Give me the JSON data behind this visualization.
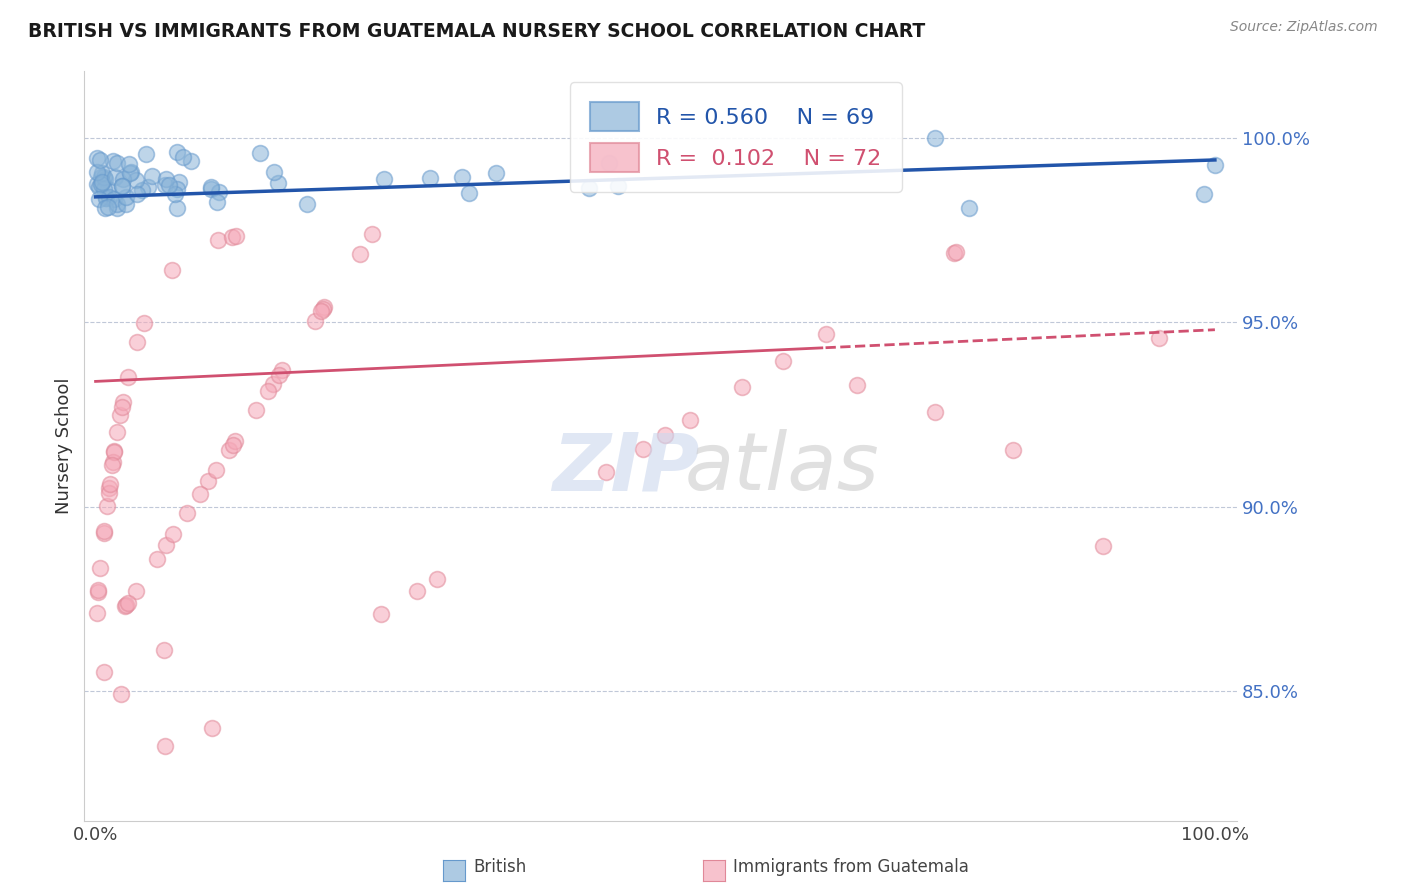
{
  "title": "BRITISH VS IMMIGRANTS FROM GUATEMALA NURSERY SCHOOL CORRELATION CHART",
  "source": "Source: ZipAtlas.com",
  "ylabel": "Nursery School",
  "british_R": 0.56,
  "british_N": 69,
  "guatemala_R": 0.102,
  "guatemala_N": 72,
  "british_color": "#8ab4d8",
  "british_edge_color": "#6699cc",
  "guatemala_color": "#f5a8b8",
  "guatemala_edge_color": "#e08898",
  "british_line_color": "#2255aa",
  "guatemala_line_color": "#d05070",
  "legend_british_label": "British",
  "legend_guatemala_label": "Immigrants from Guatemala",
  "grid_color": "#c0c8d8",
  "ytick_positions": [
    0.85,
    0.9,
    0.95,
    1.0
  ],
  "ytick_labels": [
    "85.0%",
    "90.0%",
    "95.0%",
    "100.0%"
  ],
  "xlim": [
    -0.01,
    1.02
  ],
  "ylim": [
    0.815,
    1.018
  ]
}
